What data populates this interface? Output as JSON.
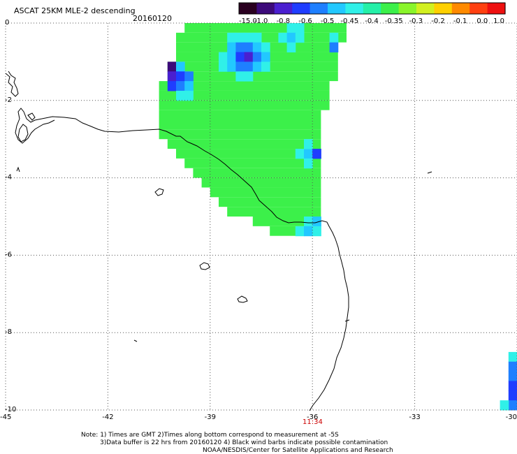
{
  "header": {
    "product": "ASCAT 25KM MLE-2 descending",
    "date": "20160120"
  },
  "colorbar": {
    "tick_labels": [
      "-15.0",
      "-1.0",
      "-0.8",
      "-0.6",
      "-0.5",
      "-0.45",
      "-0.4",
      "-0.35",
      "-0.3",
      "-0.2",
      "-0.1",
      "0.0",
      "1.0"
    ],
    "colors": [
      "#2a0020",
      "#3c0a7a",
      "#4a1fd0",
      "#1f3dff",
      "#1e7fff",
      "#22c8ff",
      "#30f0e8",
      "#24f0a8",
      "#3cf04a",
      "#8af52a",
      "#d2f020",
      "#ffd000",
      "#ff8a00",
      "#ff4010",
      "#ee1010"
    ]
  },
  "axes": {
    "x_ticks": [
      "-45",
      "-42",
      "-39",
      "-36",
      "-33",
      "-30"
    ],
    "y_ticks": [
      "0",
      "-2",
      "-4",
      "-6",
      "-8",
      "-10"
    ]
  },
  "time_label": {
    "text": "11:34",
    "color": "#cc0000"
  },
  "notes": {
    "line1": "Note: 1) Times are GMT 2)Times along bottom correspond to measurement at -5S",
    "line2": "3)Data buffer is 22 hrs from 20160120 4) Black wind barbs indicate possible contamination",
    "line3": "NOAA/NESDIS/Center for Satellite Applications and Research"
  },
  "chart_data": {
    "type": "heatmap",
    "cell_size_deg": 0.25,
    "colormap_index_note": "c = index into colorbar.colors",
    "swath_rows": [
      {
        "lat": -0.125,
        "lon_from": -39.625,
        "lon_to": -35.125,
        "c": 8
      },
      {
        "lat": -0.375,
        "lon_from": -39.875,
        "lon_to": -35.125,
        "c": 8
      },
      {
        "lat": -0.625,
        "lon_from": -39.875,
        "lon_to": -35.375,
        "c": 8
      },
      {
        "lat": -0.875,
        "lon_from": -39.875,
        "lon_to": -35.375,
        "c": 8
      },
      {
        "lat": -1.125,
        "lon_from": -40.125,
        "lon_to": -35.375,
        "c": 8
      },
      {
        "lat": -1.375,
        "lon_from": -40.125,
        "lon_to": -35.375,
        "c": 8
      },
      {
        "lat": -1.625,
        "lon_from": -40.375,
        "lon_to": -35.625,
        "c": 8
      },
      {
        "lat": -1.875,
        "lon_from": -40.375,
        "lon_to": -35.625,
        "c": 8
      },
      {
        "lat": -2.125,
        "lon_from": -40.375,
        "lon_to": -35.625,
        "c": 8
      },
      {
        "lat": -2.375,
        "lon_from": -40.375,
        "lon_to": -35.875,
        "c": 8
      },
      {
        "lat": -2.625,
        "lon_from": -40.375,
        "lon_to": -35.875,
        "c": 8
      },
      {
        "lat": -2.875,
        "lon_from": -40.375,
        "lon_to": -35.875,
        "c": 8
      },
      {
        "lat": -3.125,
        "lon_from": -40.125,
        "lon_to": -35.875,
        "c": 8
      },
      {
        "lat": -3.375,
        "lon_from": -39.875,
        "lon_to": -35.875,
        "c": 8
      },
      {
        "lat": -3.625,
        "lon_from": -39.625,
        "lon_to": -35.875,
        "c": 8
      },
      {
        "lat": -3.875,
        "lon_from": -39.375,
        "lon_to": -35.875,
        "c": 8
      },
      {
        "lat": -4.125,
        "lon_from": -39.125,
        "lon_to": -35.875,
        "c": 8
      },
      {
        "lat": -4.375,
        "lon_from": -38.875,
        "lon_to": -35.875,
        "c": 8
      },
      {
        "lat": -4.625,
        "lon_from": -38.625,
        "lon_to": -35.875,
        "c": 8
      },
      {
        "lat": -4.875,
        "lon_from": -38.375,
        "lon_to": -35.875,
        "c": 8
      },
      {
        "lat": -5.125,
        "lon_from": -37.625,
        "lon_to": -35.875,
        "c": 8
      },
      {
        "lat": -5.375,
        "lon_from": -37.125,
        "lon_to": -35.875,
        "c": 8
      }
    ],
    "cells": [
      {
        "lon": -38.375,
        "lat": -0.375,
        "c": 6
      },
      {
        "lon": -38.125,
        "lat": -0.375,
        "c": 6
      },
      {
        "lon": -37.875,
        "lat": -0.375,
        "c": 6
      },
      {
        "lon": -37.625,
        "lat": -0.375,
        "c": 6
      },
      {
        "lon": -38.375,
        "lat": -0.625,
        "c": 5
      },
      {
        "lon": -38.125,
        "lat": -0.625,
        "c": 4
      },
      {
        "lon": -37.875,
        "lat": -0.625,
        "c": 4
      },
      {
        "lon": -37.625,
        "lat": -0.625,
        "c": 5
      },
      {
        "lon": -37.375,
        "lat": -0.625,
        "c": 6
      },
      {
        "lon": -38.625,
        "lat": -0.875,
        "c": 6
      },
      {
        "lon": -38.375,
        "lat": -0.875,
        "c": 5
      },
      {
        "lon": -38.125,
        "lat": -0.875,
        "c": 3
      },
      {
        "lon": -37.875,
        "lat": -0.875,
        "c": 2
      },
      {
        "lon": -37.625,
        "lat": -0.875,
        "c": 4
      },
      {
        "lon": -37.375,
        "lat": -0.875,
        "c": 5
      },
      {
        "lon": -38.625,
        "lat": -1.125,
        "c": 6
      },
      {
        "lon": -38.375,
        "lat": -1.125,
        "c": 5
      },
      {
        "lon": -38.125,
        "lat": -1.125,
        "c": 4
      },
      {
        "lon": -37.875,
        "lat": -1.125,
        "c": 4
      },
      {
        "lon": -37.625,
        "lat": -1.125,
        "c": 5
      },
      {
        "lon": -37.375,
        "lat": -1.125,
        "c": 6
      },
      {
        "lon": -38.125,
        "lat": -1.375,
        "c": 6
      },
      {
        "lon": -37.875,
        "lat": -1.375,
        "c": 6
      },
      {
        "lon": -36.625,
        "lat": -0.125,
        "c": 6
      },
      {
        "lon": -36.375,
        "lat": -0.125,
        "c": 6
      },
      {
        "lon": -36.875,
        "lat": -0.375,
        "c": 6
      },
      {
        "lon": -36.625,
        "lat": -0.375,
        "c": 5
      },
      {
        "lon": -36.375,
        "lat": -0.375,
        "c": 6
      },
      {
        "lon": -35.375,
        "lat": -0.375,
        "c": 6
      },
      {
        "lon": -36.625,
        "lat": -0.625,
        "c": 6
      },
      {
        "lon": -35.375,
        "lat": -0.625,
        "c": 4
      },
      {
        "lon": -40.125,
        "lat": -1.125,
        "c": 1
      },
      {
        "lon": -39.875,
        "lat": -1.125,
        "c": 5
      },
      {
        "lon": -40.125,
        "lat": -1.375,
        "c": 2
      },
      {
        "lon": -39.875,
        "lat": -1.375,
        "c": 3
      },
      {
        "lon": -39.625,
        "lat": -1.375,
        "c": 4
      },
      {
        "lon": -40.125,
        "lat": -1.625,
        "c": 3
      },
      {
        "lon": -39.875,
        "lat": -1.625,
        "c": 4
      },
      {
        "lon": -39.625,
        "lat": -1.625,
        "c": 5
      },
      {
        "lon": -39.875,
        "lat": -1.875,
        "c": 6
      },
      {
        "lon": -39.625,
        "lat": -1.875,
        "c": 6
      },
      {
        "lon": -36.375,
        "lat": -3.375,
        "c": 6
      },
      {
        "lon": -36.125,
        "lat": -3.375,
        "c": 5
      },
      {
        "lon": -35.875,
        "lat": -3.375,
        "c": 3
      },
      {
        "lon": -36.125,
        "lat": -3.625,
        "c": 6
      },
      {
        "lon": -36.125,
        "lat": -3.125,
        "c": 6
      },
      {
        "lon": -36.125,
        "lat": -5.125,
        "c": 6
      },
      {
        "lon": -35.875,
        "lat": -5.125,
        "c": 5
      },
      {
        "lon": -36.375,
        "lat": -5.375,
        "c": 6
      },
      {
        "lon": -36.125,
        "lat": -5.375,
        "c": 5
      },
      {
        "lon": -35.875,
        "lat": -5.375,
        "c": 6
      },
      {
        "lon": -30.125,
        "lat": -8.625,
        "c": 6
      },
      {
        "lon": -30.125,
        "lat": -8.875,
        "c": 4
      },
      {
        "lon": -30.125,
        "lat": -9.125,
        "c": 4
      },
      {
        "lon": -30.125,
        "lat": -9.375,
        "c": 3
      },
      {
        "lon": -30.125,
        "lat": -9.625,
        "c": 3
      },
      {
        "lon": -30.125,
        "lat": -9.875,
        "c": 4
      },
      {
        "lon": -30.375,
        "lat": -9.875,
        "c": 6
      }
    ]
  }
}
